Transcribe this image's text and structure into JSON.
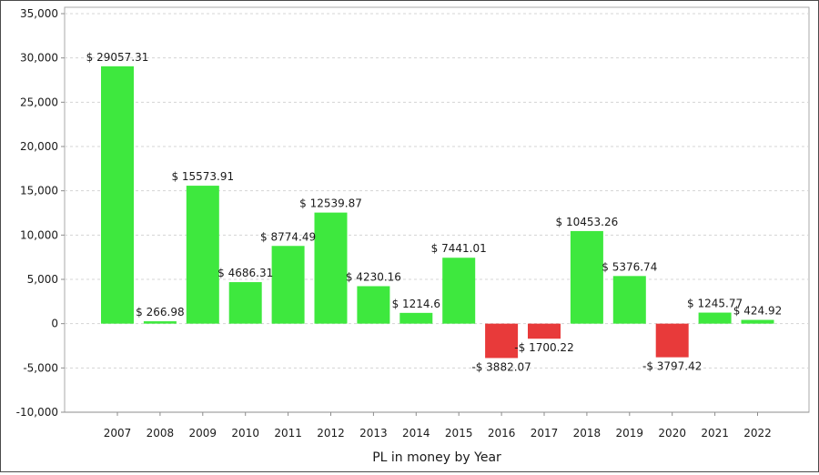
{
  "chart_data": {
    "type": "bar",
    "title": "",
    "xlabel": "PL in money by Year",
    "ylabel": "",
    "ylim": [
      -10000,
      35000
    ],
    "yticks": [
      -10000,
      -5000,
      0,
      5000,
      10000,
      15000,
      20000,
      25000,
      30000,
      35000
    ],
    "ytick_labels": [
      "-10,000",
      "-5,000",
      "0",
      "5,000",
      "10,000",
      "15,000",
      "20,000",
      "25,000",
      "30,000",
      "35,000"
    ],
    "grid": true,
    "categories": [
      "2007",
      "2008",
      "2009",
      "2010",
      "2011",
      "2012",
      "2013",
      "2014",
      "2015",
      "2016",
      "2017",
      "2018",
      "2019",
      "2020",
      "2021",
      "2022"
    ],
    "values": [
      29057.31,
      266.98,
      15573.91,
      4686.31,
      8774.49,
      12539.87,
      4230.16,
      1214.6,
      7441.01,
      -3882.07,
      -1700.22,
      10453.26,
      5376.74,
      -3797.42,
      1245.77,
      424.92
    ],
    "data_labels": [
      "$ 29057.31",
      "$ 266.98",
      "$ 15573.91",
      "$ 4686.31",
      "$ 8774.49",
      "$ 12539.87",
      "$ 4230.16",
      "$ 1214.6",
      "$ 7441.01",
      "-$ 3882.07",
      "-$ 1700.22",
      "$ 10453.26",
      "$ 5376.74",
      "-$ 3797.42",
      "$ 1245.77",
      "$ 424.92"
    ],
    "colors": {
      "positive": "#3ee83e",
      "negative": "#e83a3a",
      "grid": "#d4d4d4",
      "axis": "#8c8c8c"
    }
  }
}
